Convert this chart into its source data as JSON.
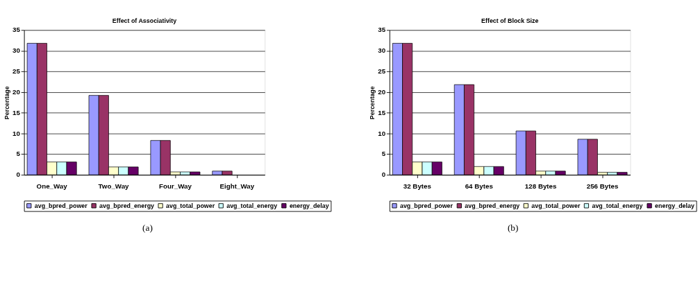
{
  "chart_data": [
    {
      "type": "bar",
      "title": "Effect of Associativity",
      "ylabel": "Percentage",
      "categories": [
        "One_Way",
        "Two_Way",
        "Four_Way",
        "Eight_Way"
      ],
      "ylim": [
        0,
        35
      ],
      "yticks": [
        0,
        5,
        10,
        15,
        20,
        25,
        30,
        35
      ],
      "grid": "y",
      "legend": "bottom",
      "annotations": [
        "(a)"
      ],
      "series": [
        {
          "name": "avg_bpred_power",
          "color": "#9999ff",
          "values": [
            31.8,
            19.2,
            8.3,
            0.9
          ]
        },
        {
          "name": "avg_bpred_energy",
          "color": "#993366",
          "values": [
            31.8,
            19.2,
            8.3,
            0.9
          ]
        },
        {
          "name": "avg_total_power",
          "color": "#ffffcc",
          "values": [
            3.1,
            1.9,
            0.7,
            null
          ]
        },
        {
          "name": "avg_total_energy",
          "color": "#ccffff",
          "values": [
            3.1,
            1.9,
            0.7,
            null
          ]
        },
        {
          "name": "energy_delay",
          "color": "#660066",
          "values": [
            3.1,
            1.9,
            0.7,
            null
          ]
        }
      ]
    },
    {
      "type": "bar",
      "title": "Effect of Block Size",
      "ylabel": "Percentage",
      "categories": [
        "32 Bytes",
        "64 Bytes",
        "128 Bytes",
        "256 Bytes"
      ],
      "ylim": [
        0,
        35
      ],
      "yticks": [
        0,
        5,
        10,
        15,
        20,
        25,
        30,
        35
      ],
      "grid": "y",
      "legend": "bottom",
      "annotations": [
        "(b)"
      ],
      "series": [
        {
          "name": "avg_bpred_power",
          "color": "#9999ff",
          "values": [
            31.8,
            21.8,
            10.6,
            8.6
          ]
        },
        {
          "name": "avg_bpred_energy",
          "color": "#993366",
          "values": [
            31.8,
            21.8,
            10.6,
            8.6
          ]
        },
        {
          "name": "avg_total_power",
          "color": "#ffffcc",
          "values": [
            3.1,
            2.0,
            0.9,
            0.6
          ]
        },
        {
          "name": "avg_total_energy",
          "color": "#ccffff",
          "values": [
            3.1,
            2.0,
            0.9,
            0.6
          ]
        },
        {
          "name": "energy_delay",
          "color": "#660066",
          "values": [
            3.1,
            2.0,
            0.9,
            0.6
          ]
        }
      ]
    }
  ]
}
